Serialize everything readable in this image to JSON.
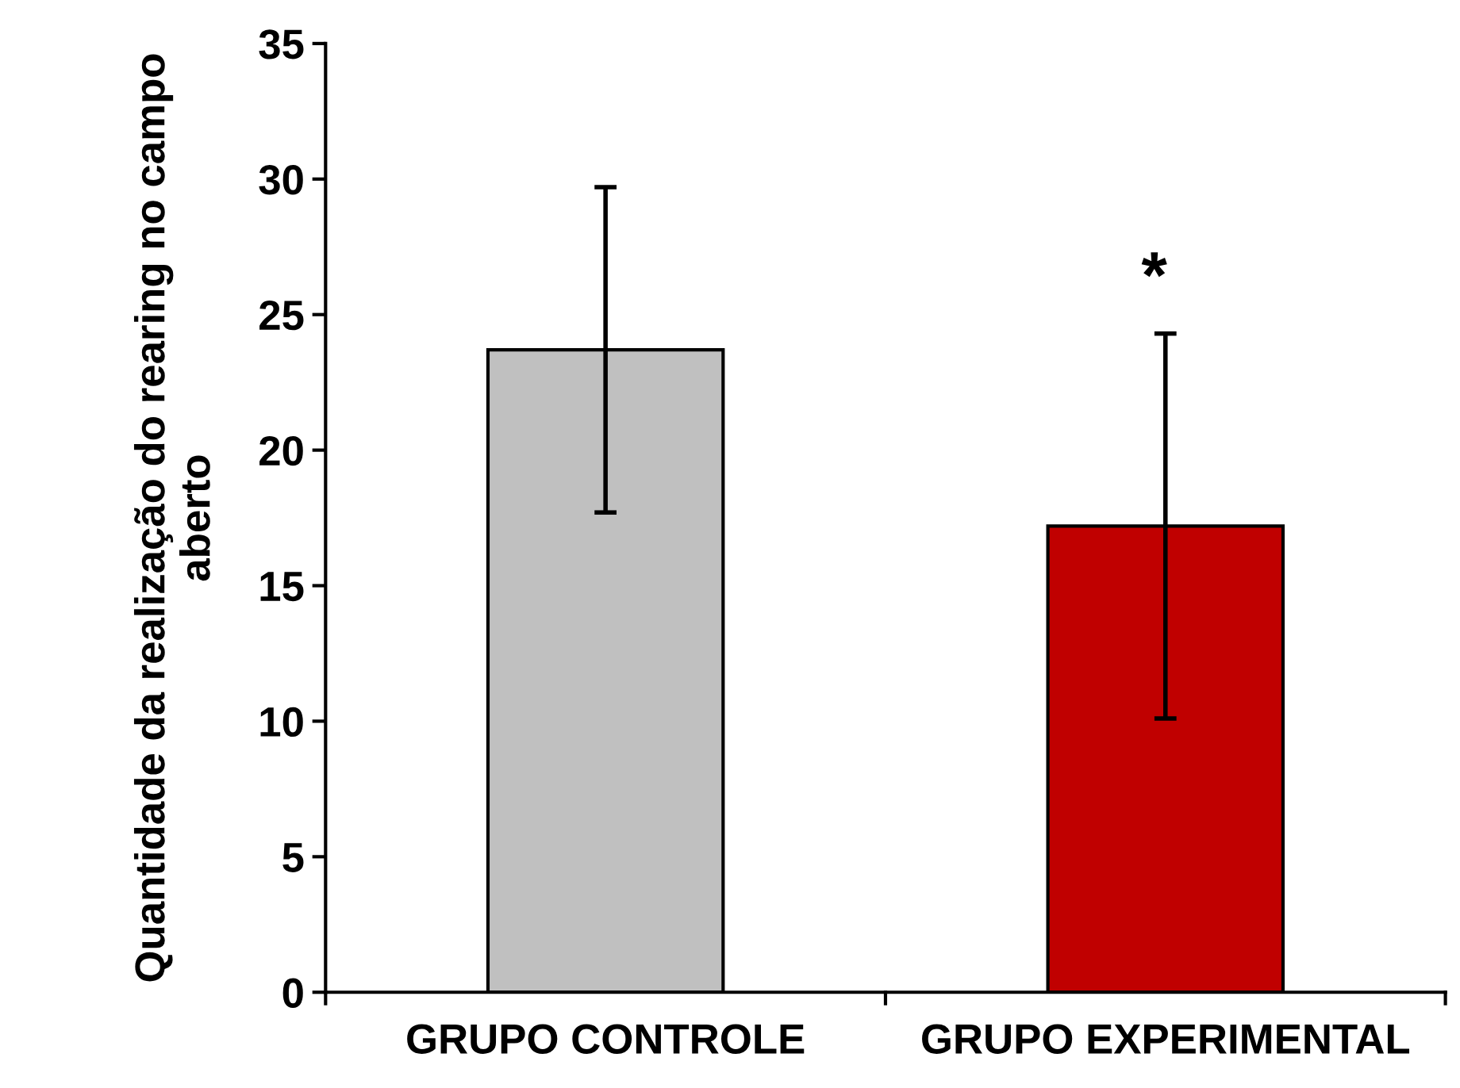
{
  "chart_data": {
    "type": "bar",
    "ylabel": "Quantidade da realização do rearing no campo aberto",
    "categories": [
      "GRUPO CONTROLE",
      "GRUPO EXPERIMENTAL"
    ],
    "values": [
      23.7,
      17.2
    ],
    "colors": [
      "#c0c0c0",
      "#c00000"
    ],
    "errors": [
      6.0,
      7.1
    ],
    "ylim": [
      0,
      35
    ],
    "yticks": [
      0,
      5,
      10,
      15,
      20,
      25,
      30,
      35
    ],
    "grid": false,
    "legend": false,
    "annotations": [
      "*"
    ]
  }
}
